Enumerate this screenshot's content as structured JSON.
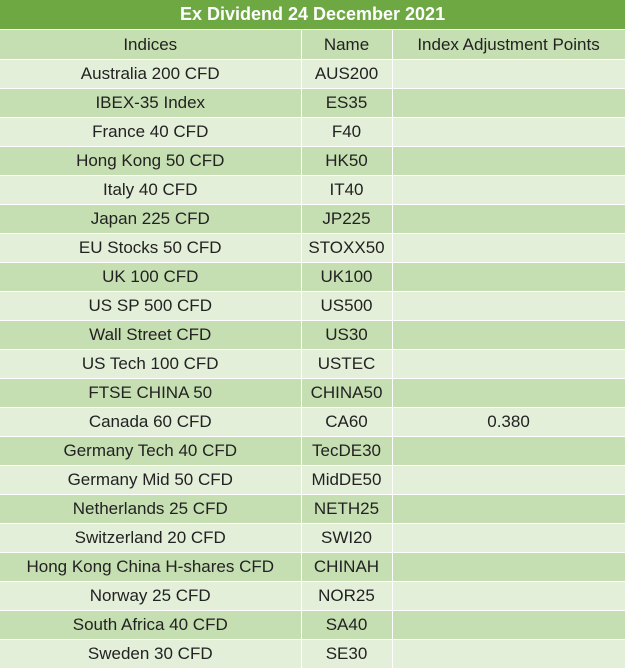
{
  "title": "Ex Dividend 24 December 2021",
  "headers": [
    "Indices",
    "Name",
    "Index Adjustment Points"
  ],
  "rows": [
    {
      "index": "Australia 200 CFD",
      "name": "AUS200",
      "points": ""
    },
    {
      "index": "IBEX-35 Index",
      "name": "ES35",
      "points": ""
    },
    {
      "index": "France 40 CFD",
      "name": "F40",
      "points": ""
    },
    {
      "index": "Hong Kong 50 CFD",
      "name": "HK50",
      "points": ""
    },
    {
      "index": "Italy 40 CFD",
      "name": "IT40",
      "points": ""
    },
    {
      "index": "Japan 225 CFD",
      "name": "JP225",
      "points": ""
    },
    {
      "index": "EU Stocks 50 CFD",
      "name": "STOXX50",
      "points": ""
    },
    {
      "index": "UK 100 CFD",
      "name": "UK100",
      "points": ""
    },
    {
      "index": "US SP 500 CFD",
      "name": "US500",
      "points": ""
    },
    {
      "index": "Wall Street CFD",
      "name": "US30",
      "points": ""
    },
    {
      "index": "US Tech 100 CFD",
      "name": "USTEC",
      "points": ""
    },
    {
      "index": "FTSE CHINA 50",
      "name": "CHINA50",
      "points": ""
    },
    {
      "index": "Canada 60 CFD",
      "name": "CA60",
      "points": "0.380"
    },
    {
      "index": "Germany Tech 40 CFD",
      "name": "TecDE30",
      "points": ""
    },
    {
      "index": "Germany Mid 50 CFD",
      "name": "MidDE50",
      "points": ""
    },
    {
      "index": "Netherlands 25 CFD",
      "name": "NETH25",
      "points": ""
    },
    {
      "index": "Switzerland 20 CFD",
      "name": "SWI20",
      "points": ""
    },
    {
      "index": "Hong Kong China H-shares CFD",
      "name": "CHINAH",
      "points": ""
    },
    {
      "index": "Norway 25 CFD",
      "name": "NOR25",
      "points": ""
    },
    {
      "index": "South Africa 40 CFD",
      "name": "SA40",
      "points": ""
    },
    {
      "index": "Sweden 30 CFD",
      "name": "SE30",
      "points": ""
    }
  ],
  "colors": {
    "title_bg": "#6ea843",
    "header_bg": "#c6dfb2",
    "row_light": "#e3efd9",
    "row_dark": "#c6dfb2"
  }
}
